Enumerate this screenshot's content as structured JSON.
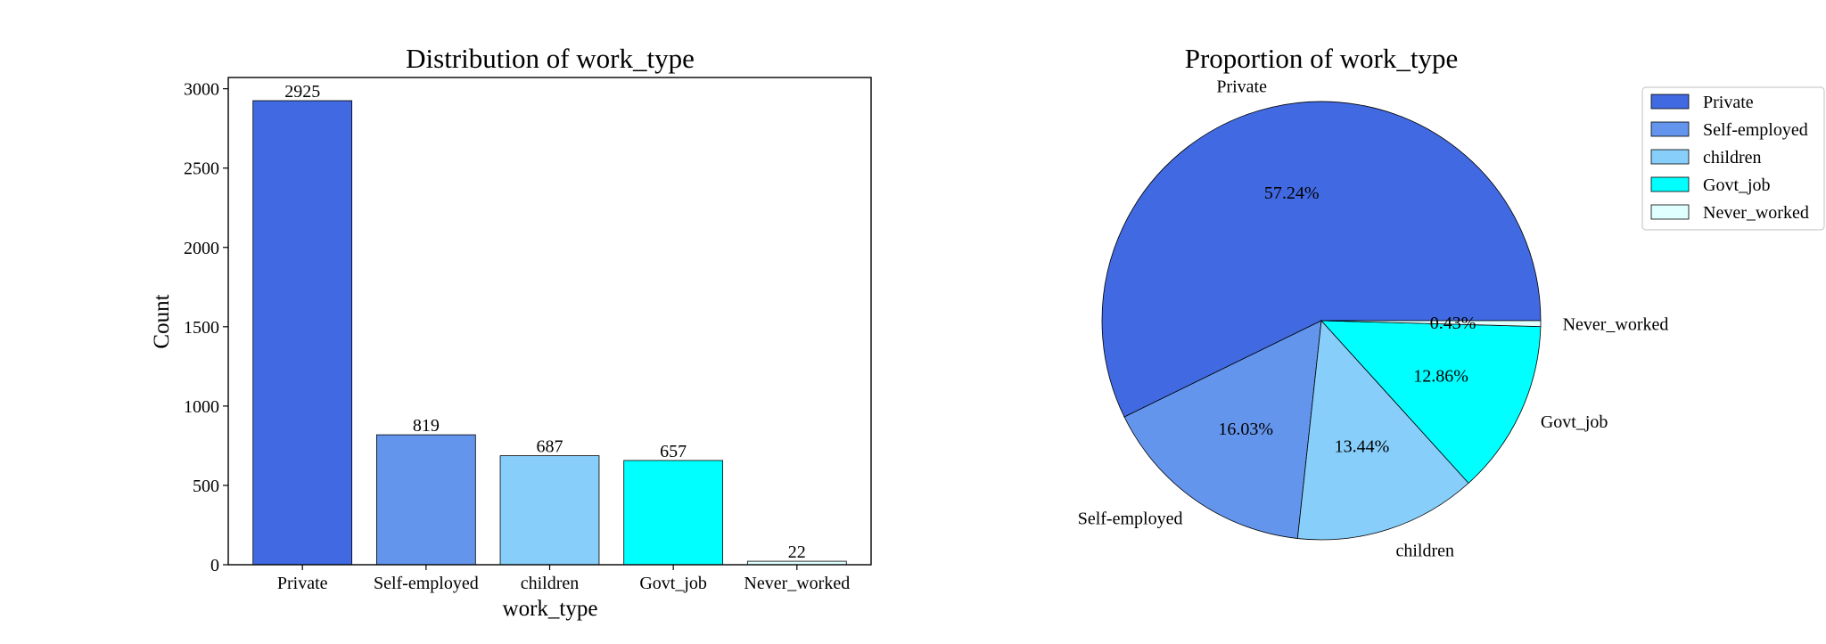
{
  "chart_data": [
    {
      "type": "bar",
      "title": "Distribution of work_type",
      "xlabel": "work_type",
      "ylabel": "Count",
      "categories": [
        "Private",
        "Self-employed",
        "children",
        "Govt_job",
        "Never_worked"
      ],
      "values": [
        2925,
        819,
        687,
        657,
        22
      ],
      "value_labels": [
        "2925",
        "819",
        "687",
        "657",
        "22"
      ],
      "yticks": [
        0,
        500,
        1000,
        1500,
        2000,
        2500,
        3000
      ],
      "ylim": [
        0,
        3071
      ],
      "colors": [
        "#4169E1",
        "#6495ED",
        "#87CEFA",
        "#00FFFF",
        "#E0FFFF"
      ],
      "grid": false
    },
    {
      "type": "pie",
      "title": "Proportion of work_type",
      "labels": [
        "Private",
        "Self-employed",
        "children",
        "Govt_job",
        "Never_worked"
      ],
      "values": [
        57.24,
        16.03,
        13.44,
        12.86,
        0.43
      ],
      "pct_labels": [
        "57.24%",
        "16.03%",
        "13.44%",
        "12.86%",
        "0.43%"
      ],
      "colors": [
        "#4169E1",
        "#6495ED",
        "#87CEFA",
        "#00FFFF",
        "#E0FFFF"
      ],
      "start_angle": 0,
      "direction": "counterclockwise",
      "legend_position": "top-right",
      "legend": [
        "Private",
        "Self-employed",
        "children",
        "Govt_job",
        "Never_worked"
      ]
    }
  ]
}
